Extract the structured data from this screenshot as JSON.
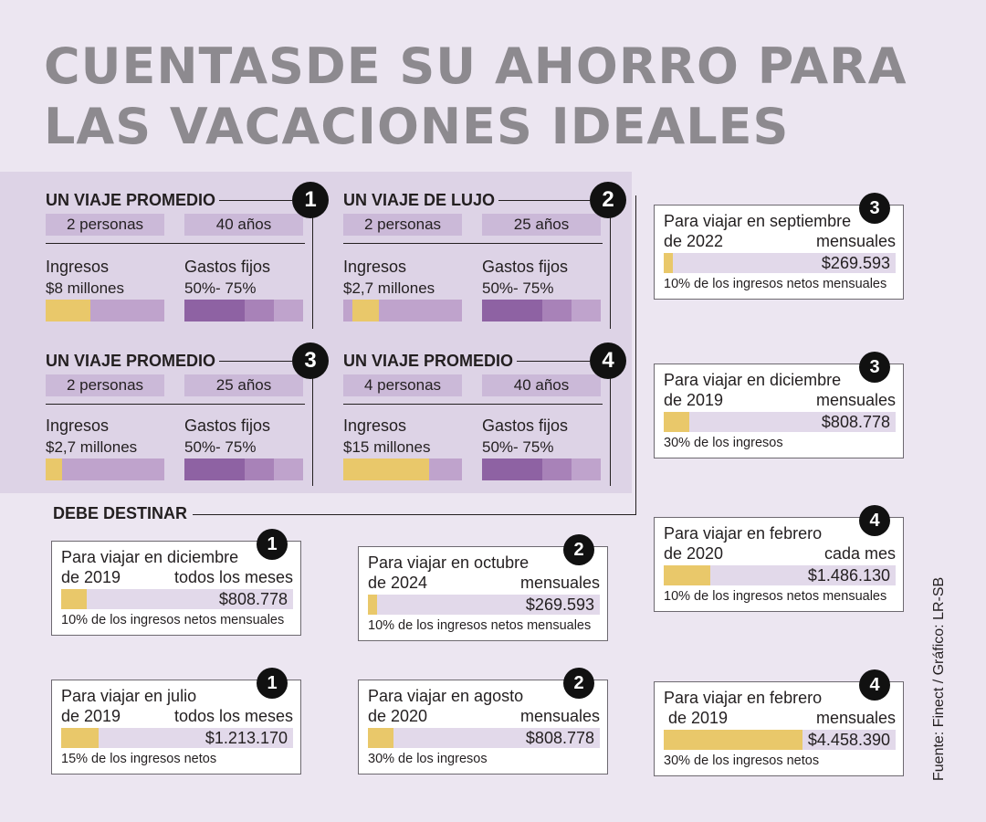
{
  "title": [
    "CUENTASDE SU AHORRO PARA",
    "LAS VACACIONES IDEALES"
  ],
  "profiles": [
    {
      "title": "UN VIAJE PROMEDIO",
      "badge": "1",
      "people": "2 personas",
      "age": "40 años",
      "income_label": "Ingresos",
      "income": "$8 millones",
      "expenses_label": "Gastos fijos",
      "expenses": "50%- 75%",
      "income_bar_fill": 0.38
    },
    {
      "title": "UN VIAJE DE LUJO",
      "badge": "2",
      "people": "2 personas",
      "age": "25 años",
      "income_label": "Ingresos",
      "income": "$2,7 millones",
      "expenses_label": "Gastos fijos",
      "expenses": "50%- 75%",
      "income_bar_fill": 0.22
    },
    {
      "title": "UN VIAJE PROMEDIO",
      "badge": "3",
      "people": "2 personas",
      "age": "25 años",
      "income_label": "Ingresos",
      "income": "$2,7 millones",
      "expenses_label": "Gastos fijos",
      "expenses": "50%- 75%",
      "income_bar_fill": 0.14
    },
    {
      "title": "UN VIAJE PROMEDIO",
      "badge": "4",
      "people": "4 personas",
      "age": "40 años",
      "income_label": "Ingresos",
      "income": "$15 millones",
      "expenses_label": "Gastos fijos",
      "expenses": "50%- 75%",
      "income_bar_fill": 0.72
    }
  ],
  "section_label": "DEBE DESTINAR",
  "cards": [
    {
      "badge": "1",
      "line1": "Para viajar en diciembre",
      "line2": "de 2019",
      "unit": "todos los meses",
      "amount": "$808.778",
      "note": "10% de los ingresos netos mensuales",
      "fill": 0.11
    },
    {
      "badge": "2",
      "line1": "Para viajar en octubre",
      "line2": "de 2024",
      "unit": "mensuales",
      "amount": "$269.593",
      "note": "10% de los ingresos netos mensuales",
      "fill": 0.04
    },
    {
      "badge": "3",
      "line1": "Para viajar en septiembre",
      "line2": "de 2022",
      "unit": "mensuales",
      "amount": "$269.593",
      "note": "10% de los ingresos netos mensuales",
      "fill": 0.04
    },
    {
      "badge": "1",
      "line1": "Para viajar en julio",
      "line2": "de 2019",
      "unit": "todos los meses",
      "amount": "$1.213.170",
      "note": "15% de los ingresos netos",
      "fill": 0.16
    },
    {
      "badge": "2",
      "line1": "Para viajar en agosto",
      "line2": "de 2020",
      "unit": "mensuales",
      "amount": "$808.778",
      "note": "30% de los ingresos",
      "fill": 0.11
    },
    {
      "badge": "3",
      "line1": "Para viajar en diciembre",
      "line2": "de 2019",
      "unit": "mensuales",
      "amount": "$808.778",
      "note": "30% de los ingresos",
      "fill": 0.11
    },
    {
      "badge": "4",
      "line1": "Para viajar en febrero",
      "line2": "de 2020",
      "unit": "cada mes",
      "amount": "$1.486.130",
      "note": "10% de los ingresos netos mensuales",
      "fill": 0.2
    },
    {
      "badge": "4",
      "line1": "Para viajar en febrero",
      "line2": " de 2019",
      "unit": "mensuales",
      "amount": "$4.458.390",
      "note": "30% de los ingresos netos",
      "fill": 0.6
    }
  ],
  "source": "Fuente: Finect / Gráfico: LR-SB"
}
